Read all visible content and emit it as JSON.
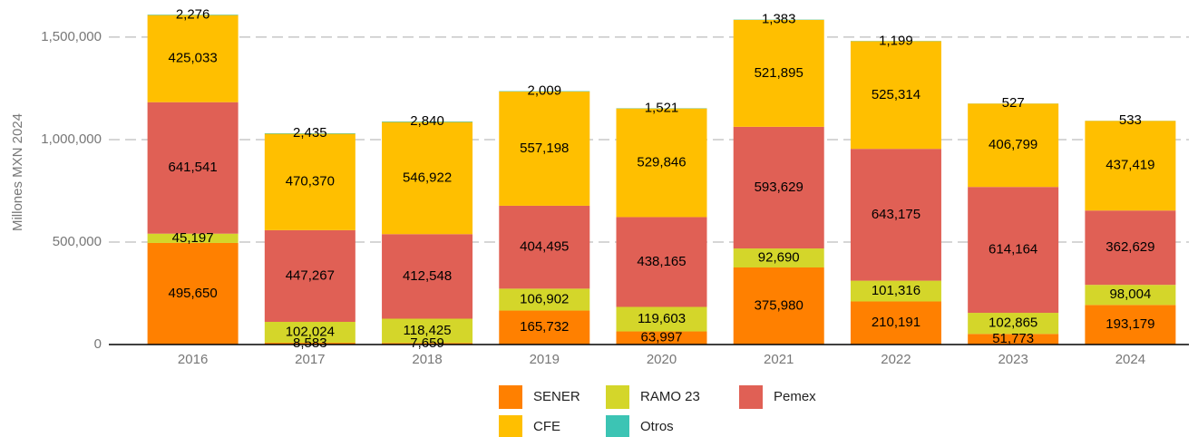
{
  "chart_data": {
    "type": "stacked_bar",
    "y_label": "Millones MXN 2024",
    "categories": [
      "2016",
      "2017",
      "2018",
      "2019",
      "2020",
      "2021",
      "2022",
      "2023",
      "2024"
    ],
    "series": [
      {
        "name": "SENER",
        "color": "#ff8000",
        "values": [
          495650,
          8583,
          7659,
          165732,
          63997,
          375980,
          210191,
          51773,
          193179
        ],
        "value_labels": [
          "495,650",
          "8,583",
          "7,659",
          "165,732",
          "63,997",
          "375,980",
          "210,191",
          "51,773",
          "193,179"
        ]
      },
      {
        "name": "RAMO 23",
        "color": "#d4d62a",
        "values": [
          45197,
          102024,
          118425,
          106902,
          119603,
          92690,
          101316,
          102865,
          98004
        ],
        "value_labels": [
          "45,197",
          "102,024",
          "118,425",
          "106,902",
          "119,603",
          "92,690",
          "101,316",
          "102,865",
          "98,004"
        ]
      },
      {
        "name": "Pemex",
        "color": "#e06055",
        "values": [
          641541,
          447267,
          412548,
          404495,
          438165,
          593629,
          643175,
          614164,
          362629
        ],
        "value_labels": [
          "641,541",
          "447,267",
          "412,548",
          "404,495",
          "438,165",
          "593,629",
          "643,175",
          "614,164",
          "362,629"
        ]
      },
      {
        "name": "CFE",
        "color": "#ffbf00",
        "values": [
          425033,
          470370,
          546922,
          557198,
          529846,
          521895,
          525314,
          406799,
          437419
        ],
        "value_labels": [
          "425,033",
          "470,370",
          "546,922",
          "557,198",
          "529,846",
          "521,895",
          "525,314",
          "406,799",
          "437,419"
        ]
      },
      {
        "name": "Otros",
        "color": "#3cc4b4",
        "values": [
          2276,
          2435,
          2840,
          2009,
          1521,
          1383,
          1199,
          527,
          533
        ],
        "value_labels": [
          "2,276",
          "2,435",
          "2,840",
          "2,009",
          "1,521",
          "1,383",
          "1,199",
          "527",
          "533"
        ]
      }
    ],
    "ylim": [
      0,
      1650000
    ],
    "yticks": [
      0,
      {
        "value": 500000,
        "label": "500,000"
      },
      {
        "value": 1000000,
        "label": "1,000,000"
      },
      {
        "value": 1500000,
        "label": "1,500,000"
      }
    ],
    "grid": true,
    "legend": "bottom"
  }
}
